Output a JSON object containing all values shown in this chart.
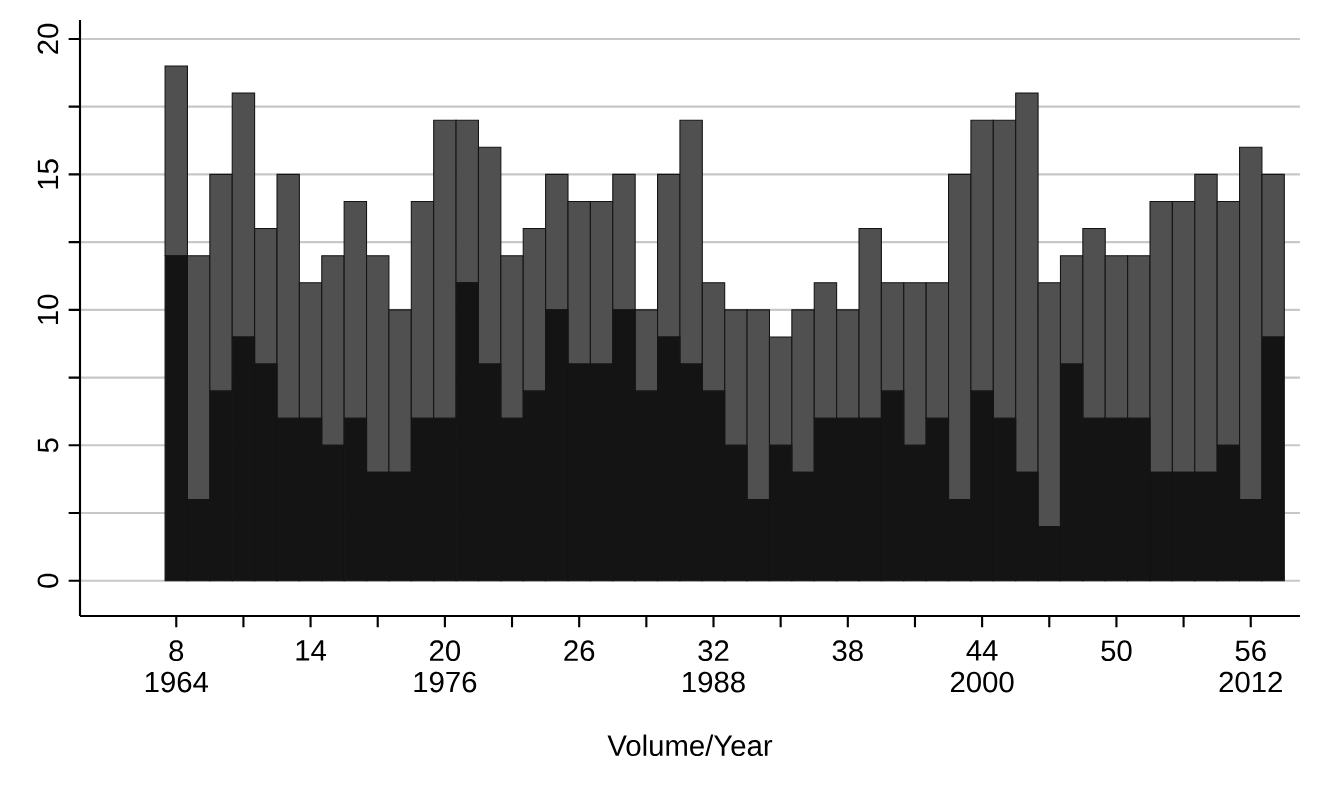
{
  "chart_data": {
    "type": "bar",
    "stacked": true,
    "xlabel": "Volume/Year",
    "x": [
      8,
      9,
      10,
      11,
      12,
      13,
      14,
      15,
      16,
      17,
      18,
      19,
      20,
      21,
      22,
      23,
      24,
      25,
      26,
      27,
      28,
      29,
      30,
      31,
      32,
      33,
      34,
      35,
      36,
      37,
      38,
      39,
      40,
      41,
      42,
      43,
      44,
      45,
      46,
      47,
      48,
      49,
      50,
      51,
      52,
      53,
      54,
      55,
      56,
      57
    ],
    "series": [
      {
        "color": "#141414",
        "values": [
          12,
          3,
          7,
          9,
          8,
          6,
          6,
          5,
          6,
          4,
          4,
          6,
          6,
          11,
          8,
          6,
          7,
          10,
          8,
          8,
          10,
          7,
          9,
          8,
          7,
          5,
          3,
          5,
          4,
          6,
          6,
          6,
          7,
          5,
          6,
          3,
          7,
          6,
          4,
          2,
          8,
          6,
          6,
          6,
          4,
          4,
          4,
          5,
          3,
          9
        ]
      },
      {
        "color": "#505050",
        "values": [
          7,
          9,
          8,
          9,
          5,
          9,
          5,
          7,
          8,
          8,
          6,
          8,
          11,
          6,
          8,
          6,
          6,
          5,
          6,
          6,
          5,
          3,
          6,
          9,
          4,
          5,
          7,
          4,
          6,
          5,
          4,
          7,
          4,
          6,
          5,
          12,
          10,
          11,
          14,
          9,
          4,
          7,
          6,
          6,
          10,
          10,
          11,
          9,
          13,
          6
        ]
      }
    ],
    "xlim": [
      3.7,
      58.2
    ],
    "xticks": [
      {
        "value": 8,
        "label": "8"
      },
      {
        "value": 11,
        "label": null
      },
      {
        "value": 14,
        "label": "14"
      },
      {
        "value": 17,
        "label": null
      },
      {
        "value": 20,
        "label": "20"
      },
      {
        "value": 23,
        "label": null
      },
      {
        "value": 26,
        "label": "26"
      },
      {
        "value": 29,
        "label": null
      },
      {
        "value": 32,
        "label": "32"
      },
      {
        "value": 35,
        "label": null
      },
      {
        "value": 38,
        "label": "38"
      },
      {
        "value": 41,
        "label": null
      },
      {
        "value": 44,
        "label": "44"
      },
      {
        "value": 47,
        "label": null
      },
      {
        "value": 50,
        "label": "50"
      },
      {
        "value": 53,
        "label": null
      },
      {
        "value": 56,
        "label": "56"
      }
    ],
    "x2lim": [
      1959.7,
      2014.2
    ],
    "x2ticks": [
      1964,
      1976,
      1988,
      2000,
      2012
    ],
    "ylim": [
      -1.3,
      20.7
    ],
    "yticks": [
      0,
      {
        "value": 2.5,
        "label": null
      },
      5,
      {
        "value": 7.5,
        "label": null
      },
      10,
      {
        "value": 12.5,
        "label": null
      },
      15,
      {
        "value": 17.5,
        "label": null
      },
      20
    ],
    "grid": "y"
  }
}
